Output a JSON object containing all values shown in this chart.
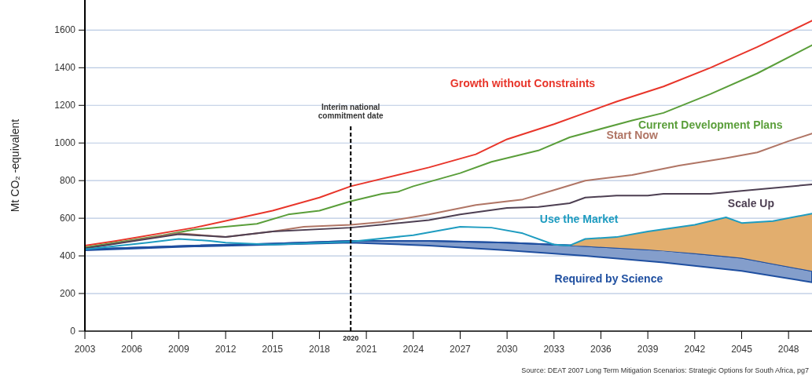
{
  "chart_data": {
    "type": "line",
    "ylabel": "Mt CO₂ -equivalent",
    "xlim": [
      2003,
      2049.5
    ],
    "ylim": [
      0,
      1760
    ],
    "xticks": [
      2003,
      2006,
      2009,
      2012,
      2015,
      2018,
      2021,
      2024,
      2027,
      2030,
      2033,
      2036,
      2039,
      2042,
      2045,
      2048
    ],
    "yticks": [
      0,
      200,
      400,
      600,
      800,
      1000,
      1200,
      1400,
      1600
    ],
    "grid": "y",
    "legend": false,
    "series": [
      {
        "name": "Growth without Constraints",
        "color": "#e8352a",
        "x": [
          2003,
          2005,
          2010,
          2015,
          2018,
          2020,
          2025,
          2028,
          2030,
          2033,
          2035,
          2037,
          2040,
          2043,
          2046,
          2049.5
        ],
        "values": [
          455,
          480,
          550,
          640,
          710,
          770,
          870,
          940,
          1020,
          1100,
          1160,
          1220,
          1300,
          1400,
          1510,
          1650
        ]
      },
      {
        "name": "Current Development Plans",
        "color": "#5a9e3a",
        "x": [
          2003,
          2008,
          2010,
          2014,
          2016,
          2018,
          2020,
          2022,
          2023,
          2024,
          2027,
          2029,
          2032,
          2034,
          2038,
          2040,
          2043,
          2046,
          2049.5
        ],
        "values": [
          445,
          510,
          540,
          570,
          620,
          640,
          690,
          730,
          740,
          770,
          840,
          900,
          960,
          1030,
          1120,
          1160,
          1260,
          1370,
          1520
        ]
      },
      {
        "name": "Start Now",
        "color": "#b07565",
        "x": [
          2003,
          2009,
          2012,
          2015,
          2017,
          2020,
          2022,
          2025,
          2028,
          2031,
          2033,
          2035,
          2038,
          2041,
          2044,
          2046,
          2048,
          2049.5
        ],
        "values": [
          440,
          520,
          500,
          530,
          555,
          565,
          580,
          620,
          670,
          700,
          750,
          800,
          830,
          880,
          920,
          950,
          1010,
          1050
        ]
      },
      {
        "name": "Scale Up",
        "color": "#4d3f52",
        "x": [
          2003,
          2009,
          2012,
          2015,
          2020,
          2025,
          2027,
          2030,
          2032,
          2034,
          2035,
          2037,
          2039,
          2040,
          2043,
          2045,
          2049.5
        ],
        "values": [
          440,
          515,
          500,
          530,
          550,
          590,
          620,
          655,
          660,
          680,
          710,
          720,
          720,
          730,
          730,
          745,
          780
        ]
      },
      {
        "name": "Required by Science",
        "type": "line",
        "color": "#1f4fa0",
        "x": [
          2003,
          2010,
          2015,
          2020,
          2025,
          2030,
          2035,
          2040,
          2045,
          2049.5
        ],
        "values": [
          435,
          455,
          465,
          480,
          480,
          470,
          452,
          430,
          390,
          320
        ],
        "lower": [
          430,
          450,
          460,
          470,
          455,
          430,
          400,
          365,
          320,
          260
        ],
        "upper": [
          435,
          455,
          465,
          480,
          480,
          470,
          452,
          430,
          390,
          320
        ]
      },
      {
        "name": "Use the Market",
        "color": "#1e9cc0",
        "x": [
          2003,
          2007,
          2009,
          2011,
          2012,
          2015,
          2020,
          2024,
          2027,
          2029,
          2031,
          2033,
          2034,
          2035,
          2037,
          2039,
          2042,
          2044,
          2045,
          2047,
          2049.5
        ],
        "values": [
          435,
          470,
          490,
          480,
          470,
          460,
          475,
          510,
          555,
          550,
          520,
          460,
          455,
          490,
          500,
          530,
          565,
          605,
          575,
          585,
          625
        ],
        "lower": [
          null,
          null,
          null,
          null,
          null,
          null,
          null,
          null,
          null,
          null,
          null,
          null,
          455,
          452,
          443,
          434,
          414,
          398,
          390,
          359,
          320
        ],
        "upper": [
          null,
          null,
          null,
          null,
          null,
          null,
          null,
          null,
          null,
          null,
          null,
          null,
          455,
          490,
          500,
          530,
          565,
          605,
          575,
          585,
          625
        ]
      }
    ],
    "ref_lines": [
      {
        "axis": "x",
        "value": 2020,
        "label": "Interim national commitment date",
        "color": "#111111",
        "line_style": "dashed"
      }
    ],
    "annotations": [
      {
        "text": "2020",
        "x": 2020,
        "y": 0
      },
      "Source: DEAT 2007 Long Term Mitigation Scenarios: Strategic Options for South Africa, pg7"
    ]
  }
}
